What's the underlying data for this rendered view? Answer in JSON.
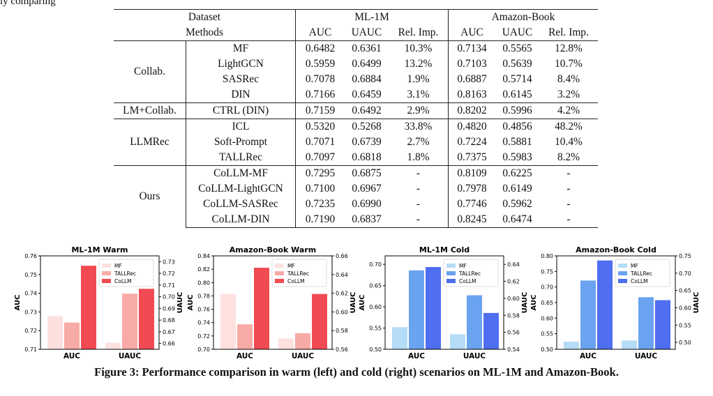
{
  "page_fragment": "ly comparing",
  "table": {
    "header1": {
      "col0": "Dataset",
      "group1": "ML-1M",
      "group2": "Amazon-Book"
    },
    "header2": {
      "col0": "Methods",
      "cols": [
        "AUC",
        "UAUC",
        "Rel. Imp.",
        "AUC",
        "UAUC",
        "Rel. Imp."
      ]
    },
    "groups": [
      {
        "name": "Collab.",
        "rows": [
          {
            "method": "MF",
            "vals": [
              "0.6482",
              "0.6361",
              "10.3%",
              "0.7134",
              "0.5565",
              "12.8%"
            ]
          },
          {
            "method": "LightGCN",
            "vals": [
              "0.5959",
              "0.6499",
              "13.2%",
              "0.7103",
              "0.5639",
              "10.7%"
            ]
          },
          {
            "method": "SASRec",
            "vals": [
              "0.7078",
              "0.6884",
              "1.9%",
              "0.6887",
              "0.5714",
              "8.4%"
            ]
          },
          {
            "method": "DIN",
            "vals": [
              "0.7166",
              "0.6459",
              "3.1%",
              "0.8163",
              "0.6145",
              "3.2%"
            ]
          }
        ]
      },
      {
        "name": "LM+Collab.",
        "rows": [
          {
            "method": "CTRL (DIN)",
            "vals": [
              "0.7159",
              "0.6492",
              "2.9%",
              "0.8202",
              "0.5996",
              "4.2%"
            ]
          }
        ]
      },
      {
        "name": "LLMRec",
        "rows": [
          {
            "method": "ICL",
            "vals": [
              "0.5320",
              "0.5268",
              "33.8%",
              "0.4820",
              "0.4856",
              "48.2%"
            ]
          },
          {
            "method": "Soft-Prompt",
            "vals": [
              "0.7071",
              "0.6739",
              "2.7%",
              "0.7224",
              "0.5881",
              "10.4%"
            ]
          },
          {
            "method": "TALLRec",
            "vals": [
              "0.7097",
              "0.6818",
              "1.8%",
              "0.7375",
              "0.5983",
              "8.2%"
            ]
          }
        ]
      },
      {
        "name": "Ours",
        "rows": [
          {
            "method": "CoLLM-MF",
            "vals": [
              "0.7295",
              "0.6875",
              "-",
              "0.8109",
              "0.6225",
              "-"
            ]
          },
          {
            "method": "CoLLM-LightGCN",
            "vals": [
              "0.7100",
              "0.6967",
              "-",
              "0.7978",
              "0.6149",
              "-"
            ]
          },
          {
            "method": "CoLLM-SASRec",
            "vals": [
              "0.7235",
              "0.6990",
              "-",
              "0.7746",
              "0.5962",
              "-"
            ]
          },
          {
            "method": "CoLLM-DIN",
            "vals": [
              "0.7190",
              "0.6837",
              "-",
              "0.8245",
              "0.6474",
              "-"
            ]
          }
        ]
      }
    ]
  },
  "chart_data": [
    {
      "type": "bar",
      "title": "ML-1M Warm",
      "categories": [
        "AUC",
        "UAUC"
      ],
      "ylabel": "AUC",
      "y2label": "UAUC",
      "ylim": [
        0.71,
        0.76
      ],
      "y2lim": [
        0.655,
        0.735
      ],
      "yticks": [
        "0.71",
        "0.72",
        "0.73",
        "0.74",
        "0.75",
        "0.76"
      ],
      "y2ticks": [
        "0.66",
        "0.67",
        "0.68",
        "0.69",
        "0.70",
        "0.71",
        "0.72",
        "0.73"
      ],
      "colors": [
        "#fde1df",
        "#f8aaa6",
        "#f24a52"
      ],
      "series": [
        {
          "name": "MF",
          "values": [
            0.7277,
            0.6607
          ]
        },
        {
          "name": "TALLRec",
          "values": [
            0.7243,
            0.7026
          ]
        },
        {
          "name": "CoLLM",
          "values": [
            0.7547,
            0.7068
          ]
        }
      ]
    },
    {
      "type": "bar",
      "title": "Amazon-Book Warm",
      "categories": [
        "AUC",
        "UAUC"
      ],
      "ylabel": "AUC",
      "y2label": "UAUC",
      "ylim": [
        0.7,
        0.84
      ],
      "y2lim": [
        0.56,
        0.66
      ],
      "yticks": [
        "0.70",
        "0.72",
        "0.74",
        "0.76",
        "0.78",
        "0.80",
        "0.82",
        "0.84"
      ],
      "y2ticks": [
        "0.56",
        "0.58",
        "0.60",
        "0.62",
        "0.64",
        "0.66"
      ],
      "colors": [
        "#fde1df",
        "#f8aaa6",
        "#f24a52"
      ],
      "series": [
        {
          "name": "MF",
          "values": [
            0.7829,
            0.5716
          ]
        },
        {
          "name": "TALLRec",
          "values": [
            0.7374,
            0.5772
          ]
        },
        {
          "name": "CoLLM",
          "values": [
            0.8222,
            0.6192
          ]
        }
      ]
    },
    {
      "type": "bar",
      "title": "ML-1M Cold",
      "categories": [
        "AUC",
        "UAUC"
      ],
      "ylabel": "AUC",
      "y2label": "UAUC",
      "ylim": [
        0.5,
        0.72
      ],
      "y2lim": [
        0.54,
        0.65
      ],
      "yticks": [
        "0.50",
        "0.55",
        "0.60",
        "0.65",
        "0.70"
      ],
      "y2ticks": [
        "0.54",
        "0.56",
        "0.58",
        "0.60",
        "0.62",
        "0.64"
      ],
      "colors": [
        "#b5dcf6",
        "#6aa3f0",
        "#4f6ef0"
      ],
      "series": [
        {
          "name": "MF",
          "values": [
            0.5522,
            0.5578
          ]
        },
        {
          "name": "TALLRec",
          "values": [
            0.6859,
            0.6036
          ]
        },
        {
          "name": "CoLLM",
          "values": [
            0.6937,
            0.5828
          ]
        }
      ]
    },
    {
      "type": "bar",
      "title": "Amazon-Book Cold",
      "categories": [
        "AUC",
        "UAUC"
      ],
      "ylabel": "AUC",
      "y2label": "UAUC",
      "ylim": [
        0.5,
        0.8
      ],
      "y2lim": [
        0.48,
        0.75
      ],
      "yticks": [
        "0.50",
        "0.55",
        "0.60",
        "0.65",
        "0.70",
        "0.75",
        "0.80"
      ],
      "y2ticks": [
        "0.50",
        "0.55",
        "0.60",
        "0.65",
        "0.70",
        "0.75"
      ],
      "colors": [
        "#b5dcf6",
        "#6aa3f0",
        "#4f6ef0"
      ],
      "series": [
        {
          "name": "MF",
          "values": [
            0.5245,
            0.5055
          ]
        },
        {
          "name": "TALLRec",
          "values": [
            0.7208,
            0.6305
          ]
        },
        {
          "name": "CoLLM",
          "values": [
            0.7852,
            0.622
          ]
        }
      ]
    }
  ],
  "caption": "Figure 3: Performance comparison in warm (left) and cold (right) scenarios on ML-1M and Amazon-Book."
}
